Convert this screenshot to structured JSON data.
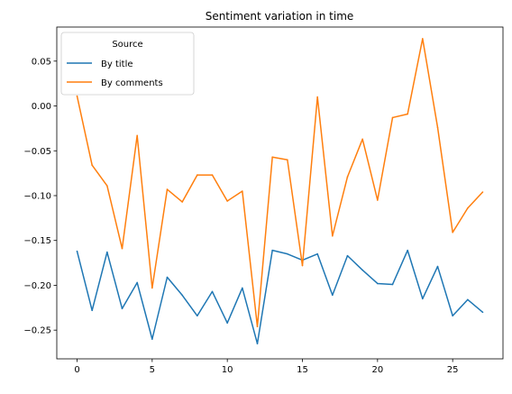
{
  "chart_data": {
    "type": "line",
    "title": "Sentiment variation in time",
    "xlabel": "",
    "ylabel": "",
    "xlim": [
      -1.35,
      28.35
    ],
    "ylim": [
      -0.282,
      0.088
    ],
    "xticks": [
      0,
      5,
      10,
      15,
      20,
      25
    ],
    "xtick_labels": [
      "0",
      "5",
      "10",
      "15",
      "20",
      "25"
    ],
    "yticks": [
      -0.25,
      -0.2,
      -0.15,
      -0.1,
      -0.05,
      0.0,
      0.05
    ],
    "ytick_labels": [
      "−0.25",
      "−0.20",
      "−0.15",
      "−0.10",
      "−0.05",
      "0.00",
      "0.05"
    ],
    "grid": false,
    "legend": {
      "title": "Source",
      "placement": "top-left"
    },
    "x": [
      0,
      1,
      2,
      3,
      4,
      5,
      6,
      7,
      8,
      9,
      10,
      11,
      12,
      13,
      14,
      15,
      16,
      17,
      18,
      19,
      20,
      21,
      22,
      23,
      24,
      25,
      26,
      27
    ],
    "series": [
      {
        "name": "By title",
        "color": "#1f77b4",
        "values": [
          -0.162,
          -0.228,
          -0.163,
          -0.226,
          -0.197,
          -0.26,
          -0.191,
          -0.211,
          -0.234,
          -0.207,
          -0.242,
          -0.203,
          -0.265,
          -0.161,
          -0.165,
          -0.172,
          -0.165,
          -0.211,
          -0.167,
          -0.183,
          -0.198,
          -0.199,
          -0.161,
          -0.215,
          -0.179,
          -0.234,
          -0.216,
          -0.23
        ]
      },
      {
        "name": "By comments",
        "color": "#ff7f0e",
        "values": [
          0.011,
          -0.066,
          -0.089,
          -0.159,
          -0.033,
          -0.203,
          -0.093,
          -0.107,
          -0.077,
          -0.077,
          -0.106,
          -0.095,
          -0.246,
          -0.057,
          -0.06,
          -0.178,
          0.01,
          -0.145,
          -0.079,
          -0.037,
          -0.105,
          -0.013,
          -0.009,
          0.075,
          -0.024,
          -0.141,
          -0.114,
          -0.096
        ]
      }
    ]
  }
}
